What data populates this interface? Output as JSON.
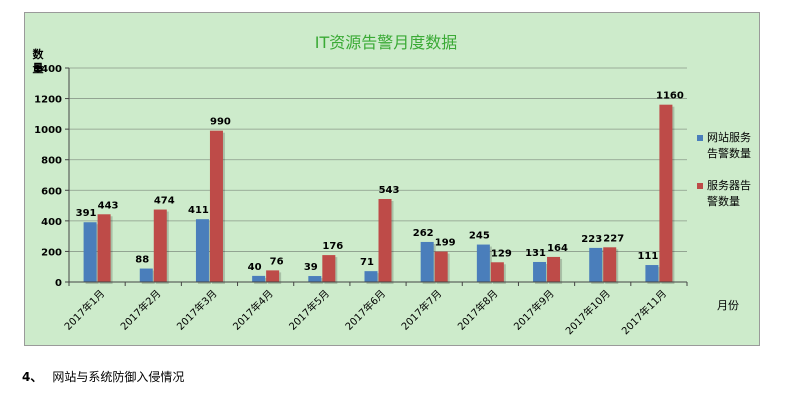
{
  "chart_data": {
    "type": "bar",
    "title": "IT资源告警月度数据",
    "ylabel": "数量",
    "xlabel": "月份",
    "ylim": [
      0,
      1400
    ],
    "yticks": [
      0,
      200,
      400,
      600,
      800,
      1000,
      1200,
      1400
    ],
    "grid": true,
    "legend_position": "right",
    "categories": [
      "2017年1月",
      "2017年2月",
      "2017年3月",
      "2017年4月",
      "2017年5月",
      "2017年6月",
      "2017年7月",
      "2017年8月",
      "2017年9月",
      "2017年10月",
      "2017年11月"
    ],
    "series": [
      {
        "name": "网站服务告警数量",
        "legend_lines": [
          "网站服务",
          "告警数量"
        ],
        "color": "#4a7ebb",
        "values": [
          391,
          88,
          411,
          40,
          39,
          71,
          262,
          245,
          131,
          223,
          111
        ]
      },
      {
        "name": "服务器告警数量",
        "legend_lines": [
          "服务器告",
          "警数量"
        ],
        "color": "#be4b48",
        "values": [
          443,
          474,
          990,
          76,
          176,
          543,
          199,
          129,
          164,
          227,
          1160
        ]
      }
    ],
    "background_color": "#cdebcb",
    "title_color": "#3aaa35"
  },
  "caption": {
    "number": "4、",
    "text": "网站与系统防御入侵情况"
  }
}
